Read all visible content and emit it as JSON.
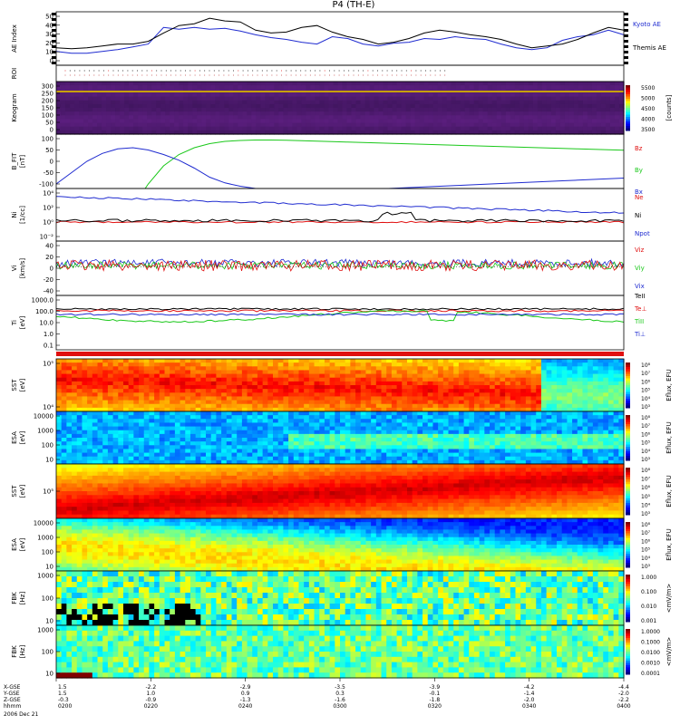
{
  "title": "P4 (TH-E)",
  "colors": {
    "black": "#000000",
    "blue": "#1f2bd0",
    "green": "#1ac81a",
    "red": "#e01010"
  },
  "chart_data": {
    "type": "line",
    "time": {
      "major_ticks": [
        "0200",
        "0220",
        "0240",
        "0300",
        "0320",
        "0340",
        "0400"
      ],
      "x_gse": [
        "1.5",
        "-2.2",
        "-2.9",
        "-3.5",
        "-3.9",
        "-4.2",
        "-4.4"
      ],
      "y_gse": [
        "1.5",
        "1.0",
        "0.9",
        "0.3",
        "-0.1",
        "-1.4",
        "-2.0"
      ],
      "z_gse": [
        "-0.3",
        "-0.9",
        "-1.3",
        "-1.6",
        "-1.8",
        "-2.0",
        "-2.2"
      ],
      "row_labels": [
        "X-GSE",
        "Y-GSE",
        "Z-GSE",
        "hhmm"
      ],
      "date": "2006 Dec 21"
    },
    "panels": [
      {
        "id": "ae",
        "ylabel": "AE Index",
        "yticks": [
          "50",
          "40",
          "30",
          "20",
          "10",
          "0"
        ],
        "legend": [
          "Kyoto AE",
          "Themis AE"
        ],
        "series": [
          {
            "name": "Kyoto AE",
            "color": "blue",
            "values": [
              12,
              10,
              10,
              12,
              14,
              17,
              20,
              38,
              36,
              38,
              36,
              37,
              34,
              30,
              27,
              25,
              22,
              20,
              28,
              26,
              20,
              18,
              21,
              22,
              26,
              25,
              28,
              26,
              25,
              20,
              16,
              14,
              16,
              24,
              28,
              30,
              35,
              30
            ]
          },
          {
            "name": "Themis AE",
            "color": "black",
            "values": [
              16,
              15,
              16,
              18,
              20,
              20,
              23,
              32,
              40,
              42,
              48,
              45,
              44,
              35,
              32,
              33,
              38,
              40,
              33,
              28,
              25,
              20,
              22,
              26,
              32,
              35,
              33,
              30,
              28,
              25,
              20,
              16,
              18,
              20,
              25,
              32,
              38,
              35
            ]
          }
        ]
      },
      {
        "id": "roi",
        "ylabel": "ROI"
      },
      {
        "id": "keogram",
        "ylabel": "Keogram",
        "yticks": [
          "300",
          "250",
          "200",
          "150",
          "100",
          "50",
          "0"
        ],
        "colorbar": {
          "label": "[counts]",
          "ticks": [
            "5500",
            "5000",
            "4500",
            "4000",
            "3500"
          ]
        }
      },
      {
        "id": "bfit",
        "ylabel": "B_FIT",
        "units": "[nT]",
        "yticks": [
          "100",
          "50",
          "0",
          "-50",
          "-100"
        ],
        "legend": [
          "Bz",
          "By",
          "Bx"
        ],
        "series": [
          {
            "name": "Bz",
            "color": "red",
            "values": []
          },
          {
            "name": "By",
            "color": "green",
            "values": [
              -200,
              -200,
              -200,
              -200,
              -200,
              -200,
              -100,
              -20,
              30,
              60,
              78,
              88,
              92,
              94,
              94,
              93,
              91,
              89,
              87,
              85,
              83,
              81,
              79,
              77,
              75,
              73,
              71,
              69,
              67,
              65,
              63,
              61,
              59,
              57,
              55,
              53,
              51,
              49
            ]
          },
          {
            "name": "Bx",
            "color": "blue",
            "values": [
              -100,
              -50,
              0,
              35,
              55,
              60,
              50,
              30,
              5,
              -30,
              -70,
              -95,
              -110,
              -120,
              -125,
              -128,
              -130,
              -130,
              -129,
              -127,
              -125,
              -122,
              -119,
              -116,
              -113,
              -110,
              -107,
              -104,
              -101,
              -98,
              -95,
              -92,
              -89,
              -86,
              -83,
              -80,
              -77,
              -74
            ]
          }
        ]
      },
      {
        "id": "ni",
        "ylabel": "Ni",
        "units": "[1/cc]",
        "yticks": [
          "10⁴",
          "10²",
          "10⁰",
          "10⁻²"
        ],
        "legend": [
          "Ne",
          "Ni",
          "Npot"
        ]
      },
      {
        "id": "vi",
        "ylabel": "Vi",
        "units": "[km/s]",
        "yticks": [
          "40",
          "20",
          "0",
          "-20",
          "-40"
        ],
        "legend": [
          "Viz",
          "Viy",
          "Vix"
        ]
      },
      {
        "id": "ti",
        "ylabel": "Ti",
        "units": "[eV]",
        "yticks": [
          "1000.0",
          "100.0",
          "10.0",
          "1.0",
          "0.1"
        ],
        "legend": [
          "TeII",
          "Te⊥",
          "TiII",
          "Ti⊥"
        ]
      },
      {
        "id": "sst1",
        "ylabel": "SST",
        "units": "[eV]",
        "yticks": [
          "10⁵",
          "10⁴"
        ],
        "colorbar": {
          "label": "Eflux, EFU",
          "ticks": [
            "10⁸",
            "10⁷",
            "10⁶",
            "10⁵",
            "10⁴",
            "10³"
          ]
        }
      },
      {
        "id": "esa1",
        "ylabel": "ESA",
        "units": "[eV]",
        "yticks": [
          "10000",
          "1000",
          "100",
          "10"
        ],
        "colorbar": {
          "label": "Eflux, EFU",
          "ticks": [
            "10⁸",
            "10⁷",
            "10⁶",
            "10⁵",
            "10⁴",
            "10³"
          ]
        }
      },
      {
        "id": "sst2",
        "ylabel": "SST",
        "units": "[eV]",
        "yticks": [
          "10⁵"
        ],
        "colorbar": {
          "label": "Eflux, EFU",
          "ticks": [
            "10⁸",
            "10⁷",
            "10⁶",
            "10⁵",
            "10⁴",
            "10³"
          ]
        }
      },
      {
        "id": "esa2",
        "ylabel": "ESA",
        "units": "[eV]",
        "yticks": [
          "10000",
          "1000",
          "100",
          "10"
        ],
        "colorbar": {
          "label": "Eflux, EFU",
          "ticks": [
            "10⁸",
            "10⁷",
            "10⁶",
            "10⁵",
            "10⁴",
            "10³"
          ]
        }
      },
      {
        "id": "fbk1",
        "ylabel": "FBK",
        "units": "[Hz]",
        "yticks": [
          "1000",
          "100",
          "10"
        ],
        "colorbar": {
          "label": "<mV/m>",
          "ticks": [
            "1.000",
            "0.100",
            "0.010",
            "0.001"
          ]
        }
      },
      {
        "id": "fbk2",
        "ylabel": "FBK",
        "units": "[Hz]",
        "yticks": [
          "1000",
          "100",
          "10"
        ],
        "colorbar": {
          "label": "<mV/m>",
          "ticks": [
            "1.0000",
            "0.1000",
            "0.0100",
            "0.0010",
            "0.0001"
          ]
        }
      }
    ]
  }
}
